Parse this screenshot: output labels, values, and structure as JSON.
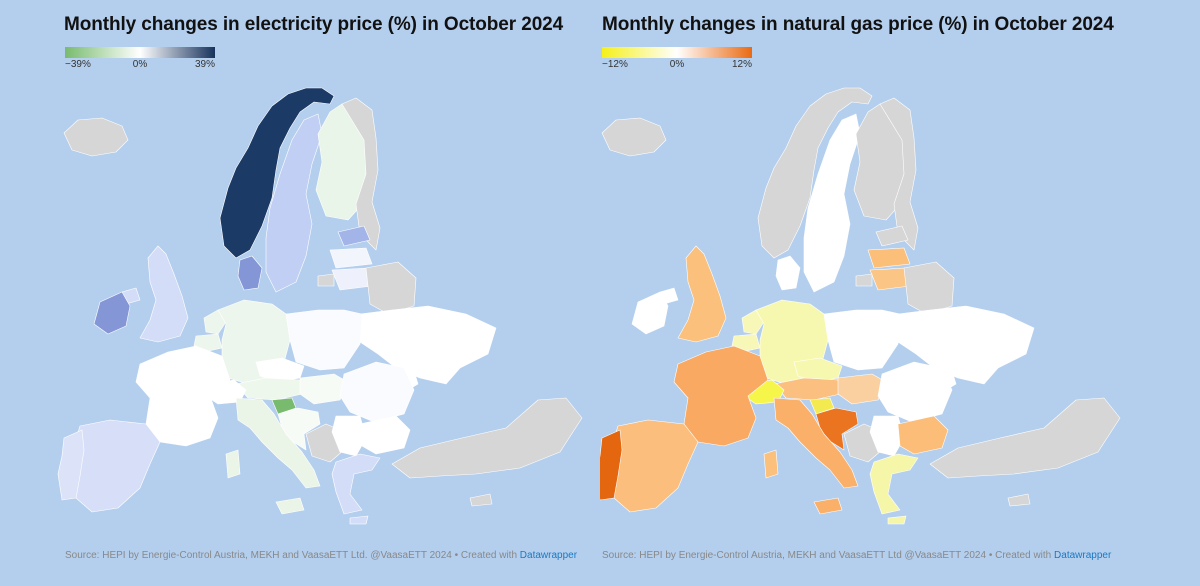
{
  "colors": {
    "background": "#b4cfee",
    "no_data": "#d6d6d6",
    "title": "#111111",
    "source_text": "#888888",
    "link": "#1a78c2"
  },
  "panels": [
    {
      "id": "electricity",
      "title": "Monthly changes in electricity price (%) in October 2024",
      "legend": {
        "min_label": "−39%",
        "mid_label": "0%",
        "max_label": "39%",
        "gradient": [
          "#78bb6e",
          "#ffffff",
          "#17325c"
        ]
      },
      "source_text": "Source: HEPI by Energie-Control Austria, MEKH and VaasaETT Ltd. @VaasaETT 2024 • Created with ",
      "source_link": "Datawrapper"
    },
    {
      "id": "gas",
      "title": "Monthly changes in natural gas price (%) in October 2024",
      "legend": {
        "min_label": "−12%",
        "mid_label": "0%",
        "max_label": "12%",
        "gradient": [
          "#f5f019",
          "#ffffff",
          "#ea6a12"
        ]
      },
      "source_text": "Source: HEPI by Energie-Control Austria, MEKH and VaasaETT Ltd @VaasaETT 2024 • Created with ",
      "source_link": "Datawrapper"
    }
  ],
  "map_colors": {
    "electricity": {
      "norway": "#1c3a66",
      "sweden": "#c0cff3",
      "finland": "#e9f5e8",
      "denmark": "#8596d6",
      "estonia": "#a3b5e8",
      "latvia": "#f3f5fd",
      "lithuania": "#eef1fb",
      "ireland": "#8596d6",
      "uk": "#d4ddf8",
      "france": "#ffffff",
      "belgium": "#edf6ec",
      "netherlands": "#edf6ec",
      "germany": "#edf6ec",
      "austria": "#eef7ec",
      "czechia": "#ffffff",
      "poland": "#fafbfe",
      "slovenia": "#78bb6e",
      "croatia": "#f7fbf6",
      "hungary": "#f7fbf6",
      "switzerland": "#ffffff",
      "spain": "#d7dff8",
      "portugal": "#dce3f8",
      "italy": "#eaf5e7",
      "sardinia": "#eaf5e7",
      "sicily": "#eaf5e7",
      "romania": "#fafbfe",
      "bulgaria": "#ffffff",
      "greece": "#d4ddf8",
      "serbia": "#ffffff",
      "ukraine": "#ffffff",
      "belarus": "#d6d6d6",
      "russia_north": "#d6d6d6",
      "kaliningrad": "#d6d6d6",
      "turkey": "#d6d6d6",
      "iceland": "#d6d6d6",
      "balkans_west": "#d6d6d6",
      "moldova": "#ffffff",
      "northern_ireland": "#d4ddf8",
      "cyprus": "#d6d6d6"
    },
    "gas": {
      "norway": "#d6d6d6",
      "sweden": "#ffffff",
      "finland": "#d6d6d6",
      "denmark": "#ffffff",
      "estonia": "#d6d6d6",
      "latvia": "#fbbf7a",
      "lithuania": "#fbc586",
      "ireland": "#ffffff",
      "uk": "#fbc07b",
      "france": "#f9a962",
      "belgium": "#f7f8b8",
      "netherlands": "#f7f8b8",
      "germany": "#f7f8b0",
      "austria": "#fbbf80",
      "czechia": "#f7f8b0",
      "poland": "#ffffff",
      "slovenia": "#f3ea4f",
      "croatia": "#ea7420",
      "hungary": "#fbd0a0",
      "switzerland": "#f5f54a",
      "spain": "#fbbe7d",
      "portugal": "#e46710",
      "italy": "#fbb069",
      "sardinia": "#fbc07b",
      "sicily": "#fbb069",
      "romania": "#ffffff",
      "bulgaria": "#fbbd78",
      "greece": "#f5f6a8",
      "serbia": "#ffffff",
      "ukraine": "#ffffff",
      "belarus": "#d6d6d6",
      "russia_north": "#d6d6d6",
      "kaliningrad": "#d6d6d6",
      "turkey": "#d6d6d6",
      "iceland": "#d6d6d6",
      "balkans_west": "#d6d6d6",
      "moldova": "#ffffff",
      "northern_ireland": "#ffffff",
      "cyprus": "#d6d6d6"
    }
  }
}
